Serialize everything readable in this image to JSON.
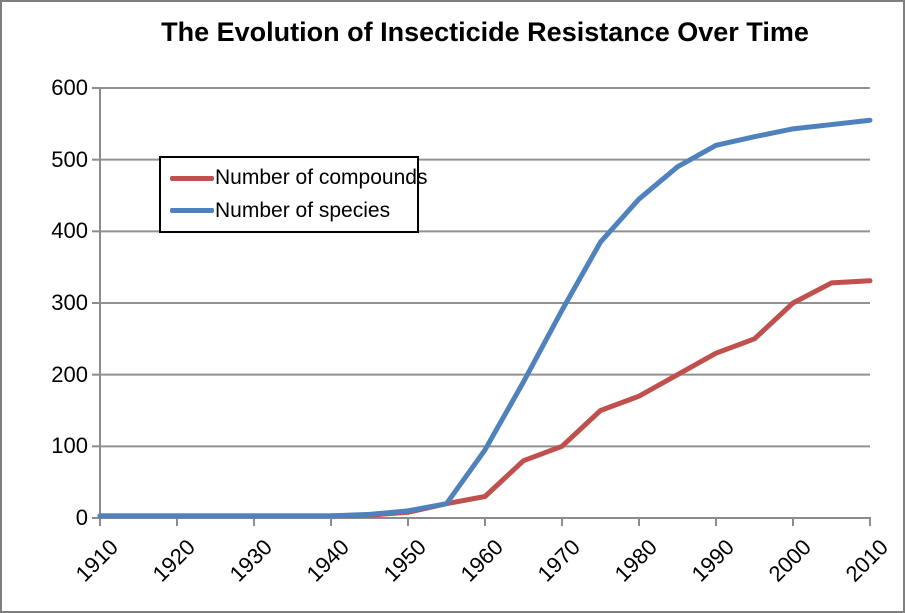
{
  "chart_data": {
    "type": "line",
    "title": "The Evolution of Insecticide Resistance Over Time",
    "xlabel": "",
    "ylabel": "",
    "xlim": [
      1910,
      2010
    ],
    "ylim": [
      0,
      600
    ],
    "xticks": [
      1910,
      1920,
      1930,
      1940,
      1950,
      1960,
      1970,
      1980,
      1990,
      2000,
      2010
    ],
    "yticks": [
      0,
      100,
      200,
      300,
      400,
      500,
      600
    ],
    "grid": "horizontal-gridlines-on",
    "legend_position": "inside-upper-left",
    "x": [
      1910,
      1915,
      1920,
      1925,
      1930,
      1935,
      1940,
      1945,
      1950,
      1955,
      1960,
      1965,
      1970,
      1975,
      1980,
      1985,
      1990,
      1995,
      2000,
      2005,
      2010
    ],
    "series": [
      {
        "name": "Number of compounds",
        "color": "#C0504D",
        "values": [
          3,
          3,
          3,
          3,
          3,
          3,
          3,
          4,
          8,
          20,
          30,
          80,
          100,
          150,
          170,
          200,
          230,
          250,
          300,
          328,
          331
        ]
      },
      {
        "name": "Number of species",
        "color": "#4F81BD",
        "values": [
          3,
          3,
          3,
          3,
          3,
          3,
          3,
          5,
          10,
          20,
          95,
          190,
          290,
          385,
          445,
          490,
          520,
          532,
          543,
          549,
          555
        ]
      }
    ],
    "colors": {
      "background": "#FFFFFF",
      "chart_border": "#7F7F7F",
      "gridline": "#919191",
      "axis": "#8C8C8C",
      "title_text": "#000000",
      "tick_text": "#000000",
      "legend_border": "#000000"
    }
  }
}
